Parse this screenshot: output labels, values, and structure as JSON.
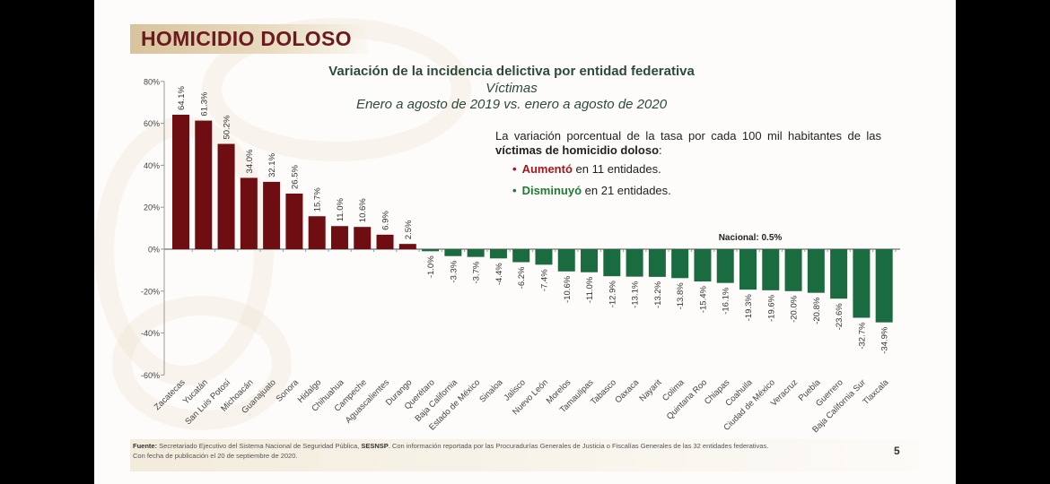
{
  "slide": {
    "section_title": "HOMICIDIO DOLOSO",
    "page_number": "5"
  },
  "note": {
    "intro_prefix": "La variación porcentual de la tasa por cada 100 mil habitantes de las ",
    "intro_bold": "víctimas de homicidio doloso",
    "intro_suffix": ":",
    "bullets": [
      {
        "bold": "Aumentó",
        "rest": " en 11 entidades.",
        "color": "#a5161c"
      },
      {
        "bold": "Disminuyó",
        "rest": " en 21 entidades.",
        "color": "#1f7a33"
      }
    ]
  },
  "footer": {
    "label": "Fuente:",
    "text1": " Secretariado Ejecutivo del Sistema Nacional de Seguridad Pública, ",
    "bold": "SESNSP",
    "text2": ". Con información reportada por las Procuradurías Generales de Justicia o Fiscalías Generales de las 32 entidades federativas.",
    "line2": "Con fecha de publicación el 20 de septiembre de 2020."
  },
  "chart_data": {
    "type": "bar",
    "title": "Variación de la incidencia delictiva por entidad federativa",
    "subtitle": "Víctimas",
    "subtitle2": "Enero a agosto de 2019 vs. enero a agosto de 2020",
    "xlabel": "",
    "ylabel": "",
    "ylim": [
      -60,
      80
    ],
    "yticks": [
      80,
      60,
      40,
      20,
      0,
      -20,
      -40,
      -60
    ],
    "ytick_labels": [
      "80%",
      "60%",
      "40%",
      "20%",
      "0%",
      "-20%",
      "-40%",
      "-60%"
    ],
    "grid": false,
    "annotation": "Nacional: 0.5%",
    "national_value": 0.5,
    "positive_color": "#6e0d12",
    "negative_color": "#1a6b3f",
    "categories": [
      "Zacatecas",
      "Yucatán",
      "San Luis Potosí",
      "Michoacán",
      "Guanajuato",
      "Sonora",
      "Hidalgo",
      "Chihuahua",
      "Campeche",
      "Aguascalientes",
      "Durango",
      "Querétaro",
      "Baja California",
      "Estado de México",
      "Sinaloa",
      "Jalisco",
      "Nuevo León",
      "Morelos",
      "Tamaulipas",
      "Tabasco",
      "Oaxaca",
      "Nayarit",
      "Colima",
      "Quintana Roo",
      "Chiapas",
      "Coahuila",
      "Ciudad de México",
      "Veracruz",
      "Puebla",
      "Guerrero",
      "Baja California Sur",
      "Tlaxcala"
    ],
    "values": [
      64.1,
      61.3,
      50.2,
      34.0,
      32.1,
      26.5,
      15.7,
      11.0,
      10.6,
      6.9,
      2.5,
      -1.0,
      -3.3,
      -3.7,
      -4.4,
      -6.2,
      -7.4,
      -10.6,
      -11.0,
      -12.9,
      -13.1,
      -13.2,
      -13.8,
      -15.4,
      -16.1,
      -19.3,
      -19.6,
      -20.0,
      -20.8,
      -23.6,
      -32.7,
      -34.9
    ],
    "value_labels": [
      "64.1%",
      "61.3%",
      "50.2%",
      "34.0%",
      "32.1%",
      "26.5%",
      "15.7%",
      "11.0%",
      "10.6%",
      "6.9%",
      "2.5%",
      "-1.0%",
      "-3.3%",
      "-3.7%",
      "-4.4%",
      "-6.2%",
      "-7.4%",
      "-10.6%",
      "-11.0%",
      "-12.9%",
      "-13.1%",
      "-13.2%",
      "-13.8%",
      "-15.4%",
      "-16.1%",
      "-19.3%",
      "-19.6%",
      "-20.0%",
      "-20.8%",
      "-23.6%",
      "-32.7%",
      "-34.9%"
    ]
  }
}
